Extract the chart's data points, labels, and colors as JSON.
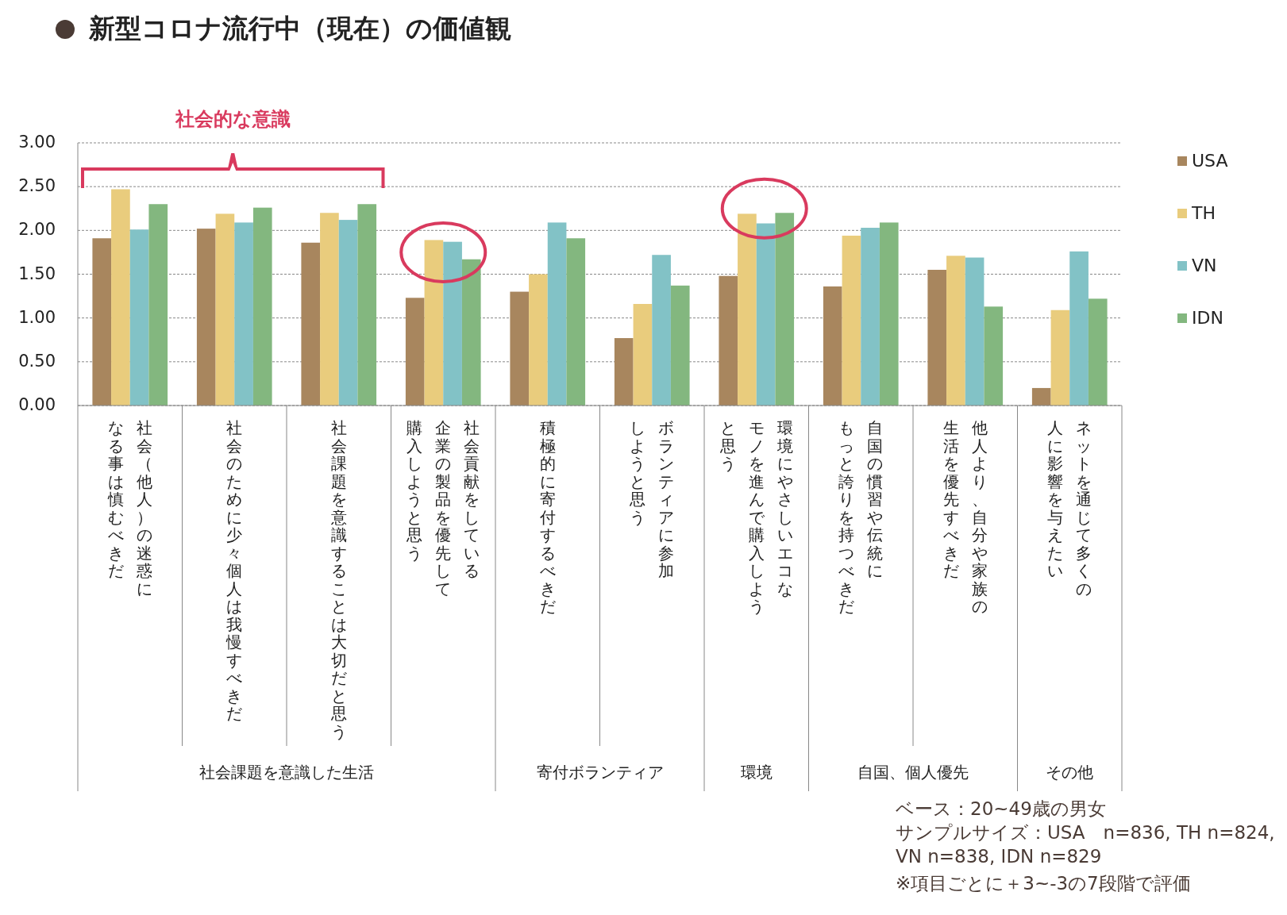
{
  "chart_data": {
    "type": "bar",
    "title": "新型コロナ流行中（現在）の価値観",
    "categories": [
      "社会（他人）の迷惑になる事は慎むべきだ",
      "社会のために少々個人は我慢すべきだ",
      "社会課題を意識することは大切だと思う",
      "社会貢献をしている企業の製品を優先して購入しようと思う",
      "積極的に寄付するべきだ",
      "ボランティアに参加しようと思う",
      "環境にやさしいエコなモノを進んで購入しようと思う",
      "自国の慣習や伝統にもっと誇りを持つべきだ",
      "他人より、自分や家族の生活を優先すべきだ",
      "ネットを通じて多くの人に影響を与えたい"
    ],
    "series": [
      {
        "name": "USA",
        "color": "#a8865e",
        "values": [
          1.91,
          2.02,
          1.86,
          1.23,
          1.3,
          0.77,
          1.48,
          1.36,
          1.55,
          0.2
        ]
      },
      {
        "name": "TH",
        "color": "#e9cc7d",
        "values": [
          2.47,
          2.19,
          2.2,
          1.89,
          1.5,
          1.16,
          2.19,
          1.94,
          1.71,
          1.09
        ]
      },
      {
        "name": "VN",
        "color": "#82c2c6",
        "values": [
          2.01,
          2.09,
          2.12,
          1.87,
          2.09,
          1.72,
          2.08,
          2.03,
          1.69,
          1.76
        ]
      },
      {
        "name": "IDN",
        "color": "#83b77f",
        "values": [
          2.3,
          2.26,
          2.3,
          1.67,
          1.91,
          1.37,
          2.2,
          2.09,
          1.13,
          1.22
        ]
      }
    ],
    "ylim": [
      0,
      3
    ],
    "yticks": [
      {
        "value": 0,
        "label": "0.00"
      },
      {
        "value": 0.5,
        "label": "0.50"
      },
      {
        "value": 1,
        "label": "1.00"
      },
      {
        "value": 1.5,
        "label": "1.50"
      },
      {
        "value": 2,
        "label": "2.00"
      },
      {
        "value": 2.5,
        "label": "2.50"
      },
      {
        "value": 3,
        "label": "3.00"
      }
    ],
    "grid": "y",
    "legend": "right",
    "annotations": [
      "社会課題を意識した生活",
      "寄付ボランティア",
      "環境",
      "自国、個人優先",
      "その他",
      "社会的な意識",
      "ベース：20~49歳の男女",
      "サンプルサイズ：USA　n=836, TH n=824, VN n=838, IDN n=829",
      "※項目ごとに＋3~-3の7段階で評価"
    ]
  }
}
